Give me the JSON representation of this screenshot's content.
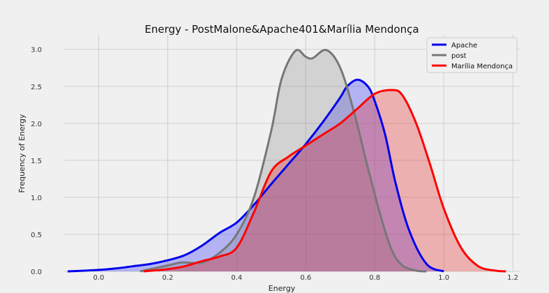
{
  "chart_data": {
    "type": "area",
    "title": "Energy - PostMalone&Apache401&Marília Mendonça",
    "xlabel": "Energy",
    "ylabel": "Frequency of Energy",
    "xlim": [
      -0.1,
      1.22
    ],
    "ylim": [
      0,
      3.12
    ],
    "xticks": [
      "0.0",
      "0.2",
      "0.4",
      "0.6",
      "0.8",
      "1.0",
      "1.2"
    ],
    "yticks": [
      "0.0",
      "0.5",
      "1.0",
      "1.5",
      "2.0",
      "2.5",
      "3.0"
    ],
    "grid": true,
    "legend_position": "top-right",
    "series": [
      {
        "name": "Apache",
        "color": "#0000ee",
        "fill": "rgba(40,40,255,0.3)",
        "x": [
          -0.09,
          0.0,
          0.05,
          0.1,
          0.15,
          0.2,
          0.25,
          0.3,
          0.35,
          0.4,
          0.45,
          0.5,
          0.55,
          0.6,
          0.65,
          0.7,
          0.72,
          0.75,
          0.78,
          0.8,
          0.83,
          0.86,
          0.9,
          0.95,
          1.0
        ],
        "y": [
          0.0,
          0.02,
          0.04,
          0.07,
          0.1,
          0.15,
          0.22,
          0.35,
          0.52,
          0.66,
          0.9,
          1.18,
          1.45,
          1.72,
          2.02,
          2.35,
          2.5,
          2.59,
          2.5,
          2.3,
          1.85,
          1.2,
          0.55,
          0.1,
          0.0
        ]
      },
      {
        "name": "post",
        "color": "#777777",
        "fill": "rgba(120,120,120,0.25)",
        "x": [
          0.12,
          0.2,
          0.24,
          0.3,
          0.35,
          0.4,
          0.45,
          0.5,
          0.53,
          0.57,
          0.6,
          0.62,
          0.66,
          0.7,
          0.74,
          0.78,
          0.82,
          0.85,
          0.88,
          0.92,
          0.95
        ],
        "y": [
          0.0,
          0.08,
          0.12,
          0.12,
          0.25,
          0.5,
          1.0,
          1.9,
          2.6,
          2.98,
          2.9,
          2.88,
          2.99,
          2.75,
          2.15,
          1.4,
          0.7,
          0.28,
          0.08,
          0.01,
          0.0
        ]
      },
      {
        "name": "Marília Mendonça",
        "color": "#ff0000",
        "fill": "rgba(230,40,40,0.32)",
        "x": [
          0.13,
          0.2,
          0.25,
          0.3,
          0.35,
          0.4,
          0.45,
          0.5,
          0.55,
          0.6,
          0.65,
          0.7,
          0.75,
          0.8,
          0.85,
          0.88,
          0.92,
          0.96,
          1.0,
          1.05,
          1.1,
          1.15,
          1.18
        ],
        "y": [
          0.0,
          0.03,
          0.07,
          0.14,
          0.2,
          0.32,
          0.8,
          1.35,
          1.55,
          1.7,
          1.85,
          2.0,
          2.2,
          2.4,
          2.45,
          2.38,
          2.0,
          1.45,
          0.85,
          0.32,
          0.07,
          0.01,
          0.0
        ]
      }
    ]
  }
}
